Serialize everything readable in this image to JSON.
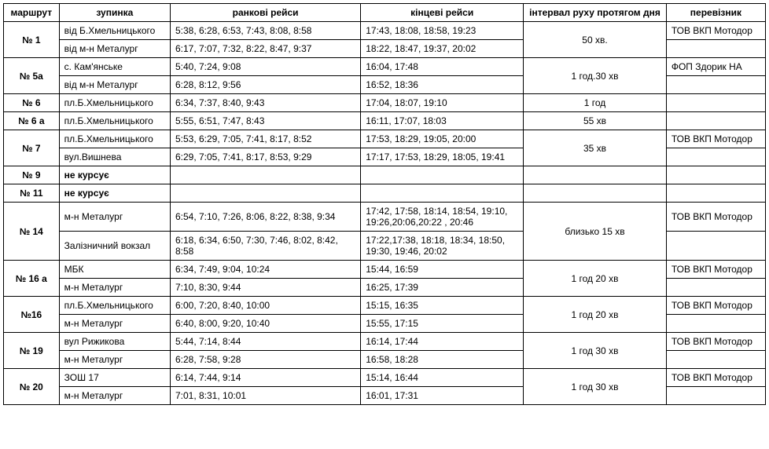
{
  "headers": {
    "route": "маршрут",
    "stop": "зупинка",
    "morning": "ранкові рейси",
    "final": "кінцеві рейси",
    "interval": "інтервал руху протягом дня",
    "carrier": "перевізник"
  },
  "routes": [
    {
      "num": "№ 1",
      "interval": "50 хв.",
      "rows": [
        {
          "stop": "від Б.Хмельницького",
          "morning": "5:38,  6:28, 6:53,  7:43, 8:08,  8:58",
          "final": "17:43,  18:08,  18:58,  19:23",
          "carrier": "ТОВ ВКП Мотодор"
        },
        {
          "stop": "від м-н Металург",
          "morning": "6:17, 7:07, 7:32,  8:22,  8:47, 9:37",
          "final": "18:22,  18:47,  19:37,  20:02",
          "carrier": ""
        }
      ]
    },
    {
      "num": "№ 5а",
      "interval": "1 год.30 хв",
      "rows": [
        {
          "stop": "с. Кам'янське",
          "morning": "5:40,  7:24, 9:08",
          "final": "16:04,  17:48",
          "carrier": "ФОП Здорик НА"
        },
        {
          "stop": "від м-н Металург",
          "morning": "6:28,  8:12, 9:56",
          "final": "16:52,  18:36",
          "carrier": ""
        }
      ]
    },
    {
      "num": "№ 6",
      "interval": "1 год",
      "rows": [
        {
          "stop": "пл.Б.Хмельницького",
          "morning": "6:34, 7:37,  8:40, 9:43",
          "final": "17:04,  18:07,  19:10",
          "carrier": ""
        }
      ]
    },
    {
      "num": "№ 6 а",
      "interval": "55 хв",
      "rows": [
        {
          "stop": "пл.Б.Хмельницького",
          "morning": "5:55,  6:51, 7:47, 8:43",
          "final": "16:11,  17:07,  18:03",
          "carrier": ""
        }
      ]
    },
    {
      "num": "№ 7",
      "interval": "35 хв",
      "rows": [
        {
          "stop": "пл.Б.Хмельницького",
          "morning": "5:53, 6:29,  7:05,  7:41,  8:17,  8:52",
          "final": "17:53,  18:29,  19:05,  20:00",
          "carrier": "ТОВ ВКП Мотодор"
        },
        {
          "stop": "вул.Вишнева",
          "morning": "6:29,  7:05,  7:41,  8:17, 8:53,  9:29",
          "final": "17:17, 17:53, 18:29,  18:05, 19:41",
          "carrier": ""
        }
      ]
    },
    {
      "num": "№ 9",
      "interval": "",
      "rows": [
        {
          "stop": "не курсує",
          "stop_bold": true,
          "morning": "",
          "final": "",
          "carrier": ""
        }
      ]
    },
    {
      "num": "№ 11",
      "interval": "",
      "rows": [
        {
          "stop": "не курсує",
          "stop_bold": true,
          "morning": "",
          "final": "",
          "carrier": ""
        }
      ]
    },
    {
      "num": "№ 14",
      "interval": "близько 15 хв",
      "rows": [
        {
          "stop": "м-н Металург",
          "morning": "6:54,  7:10,  7:26, 8:06,  8:22, 8:38, 9:34",
          "final": "17:42, 17:58, 18:14,  18:54, 19:10, 19:26,20:06,20:22 , 20:46",
          "carrier": "ТОВ ВКП Мотодор"
        },
        {
          "stop": "Залізничний вокзал",
          "morning": "6:18,  6:34,  6:50, 7:30, 7:46, 8:02, 8:42, 8:58",
          "final": "17:22,17:38, 18:18, 18:34, 18:50, 19:30, 19:46, 20:02",
          "carrier": ""
        }
      ]
    },
    {
      "num": "№ 16 а",
      "interval": "1 год 20 хв",
      "rows": [
        {
          "stop": "МБК",
          "morning": "6:34,  7:49, 9:04, 10:24",
          "final": "15:44,  16:59",
          "carrier": "ТОВ ВКП Мотодор"
        },
        {
          "stop": "м-н Металург",
          "morning": "7:10,  8:30, 9:44",
          "final": "16:25,  17:39",
          "carrier": ""
        }
      ]
    },
    {
      "num": "№16",
      "interval": "1 год 20 хв",
      "rows": [
        {
          "stop": "пл.Б.Хмельницького",
          "morning": "6:00,  7:20,  8:40, 10:00",
          "final": "15:15,  16:35",
          "carrier": "ТОВ ВКП Мотодор"
        },
        {
          "stop": "м-н Металург",
          "morning": "6:40,  8:00, 9:20,  10:40",
          "final": "15:55,  17:15",
          "carrier": ""
        }
      ]
    },
    {
      "num": "№ 19",
      "interval": "1 год 30 хв",
      "rows": [
        {
          "stop": "вул Рижикова",
          "morning": "5:44,  7:14,  8:44",
          "final": "16:14,  17:44",
          "carrier": "ТОВ ВКП Мотодор"
        },
        {
          "stop": "м-н Металург",
          "morning": "6:28, 7:58,  9:28",
          "final": "16:58,  18:28",
          "carrier": ""
        }
      ]
    },
    {
      "num": "№ 20",
      "interval": "1 год 30 хв",
      "rows": [
        {
          "stop": "ЗОШ 17",
          "morning": "6:14,  7:44, 9:14",
          "final": "15:14,  16:44",
          "carrier": "ТОВ ВКП Мотодор"
        },
        {
          "stop": "м-н Металург",
          "morning": "7:01, 8:31, 10:01",
          "final": "16:01,  17:31",
          "carrier": ""
        }
      ]
    }
  ]
}
